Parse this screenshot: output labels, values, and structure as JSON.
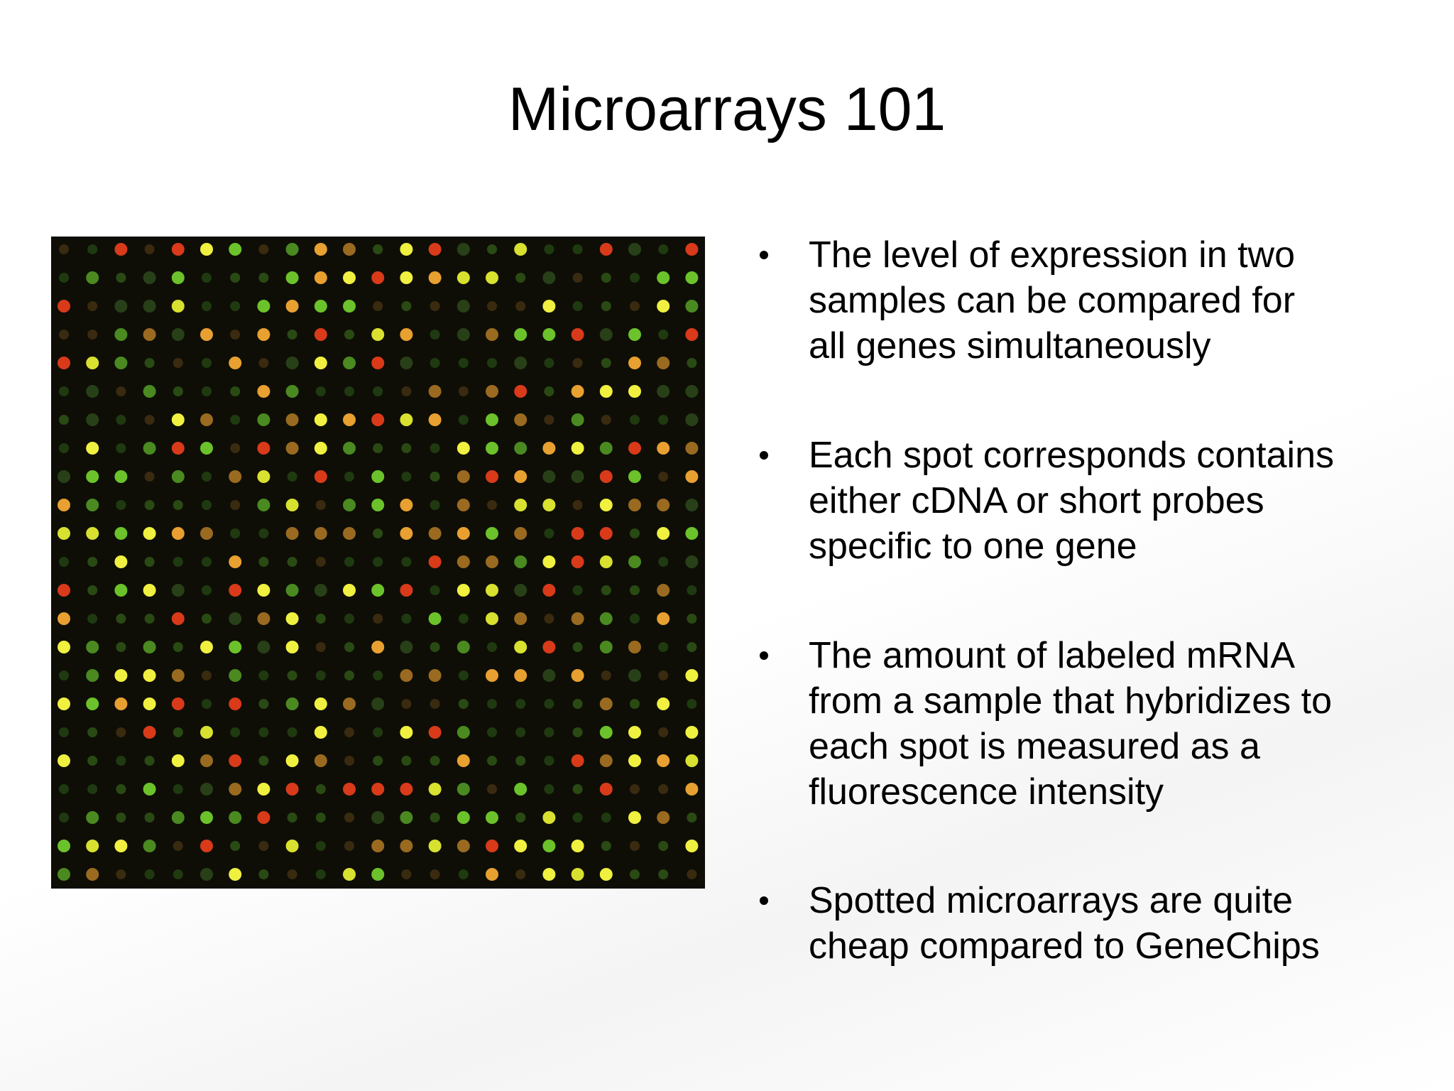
{
  "title": "Microarrays 101",
  "bullets": [
    [
      "The level of expression in two",
      "samples can be compared for",
      "all genes simultaneously"
    ],
    [
      "Each spot corresponds contains",
      "either cDNA or short probes",
      "specific to one gene"
    ],
    [
      "The amount of labeled mRNA",
      "from a sample that hybridizes to",
      "each spot is measured as a",
      "fluorescence intensity"
    ],
    [
      "Spotted microarrays are quite",
      "cheap compared to GeneChips"
    ]
  ]
}
